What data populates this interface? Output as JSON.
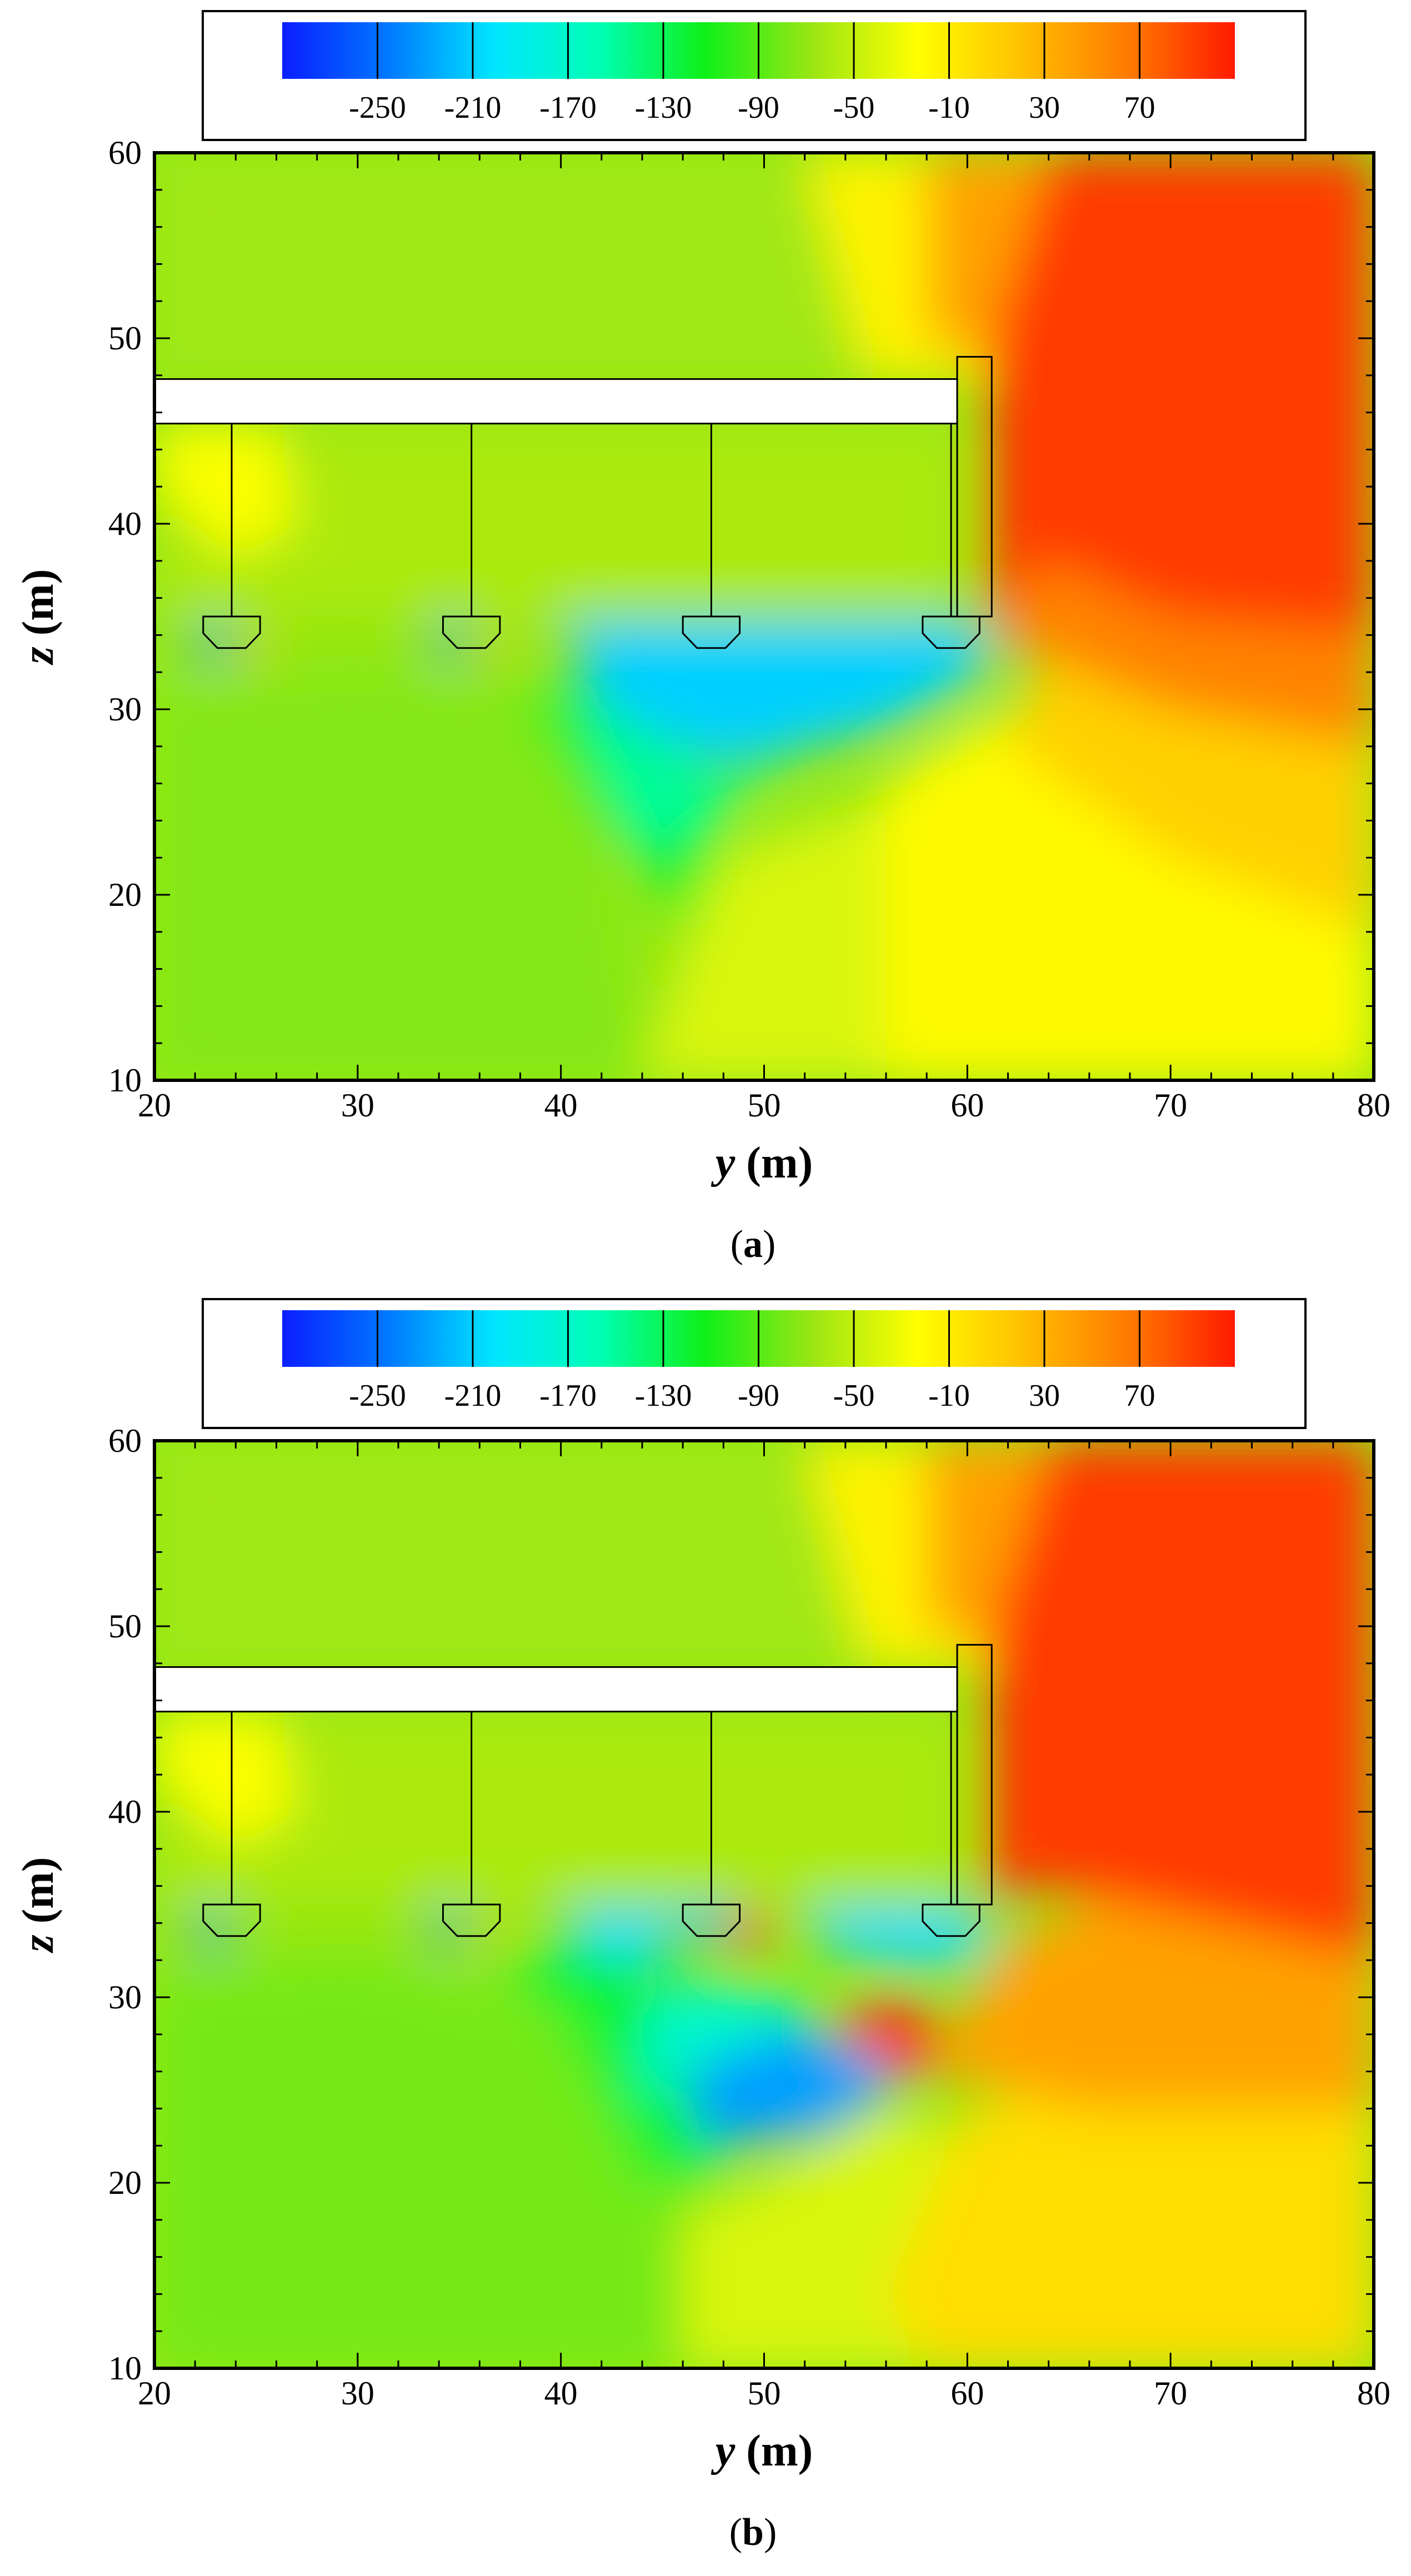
{
  "chart_data": [
    {
      "type": "heatmap",
      "caption_open": "(",
      "caption_letter": "a",
      "caption_close": ")",
      "xlabel_var": "y",
      "xlabel_unit": " (m)",
      "ylabel_var": "z",
      "ylabel_unit": " (m)",
      "xlim": [
        20,
        80
      ],
      "ylim": [
        10,
        60
      ],
      "x_ticks": [
        "20",
        "30",
        "40",
        "50",
        "60",
        "70",
        "80"
      ],
      "y_ticks": [
        "10",
        "20",
        "30",
        "40",
        "50",
        "60"
      ],
      "legend_levels": [
        "-250",
        "-210",
        "-170",
        "-130",
        "-90",
        "-50",
        "-10",
        "30",
        "70"
      ],
      "colorscale": [
        "#0a1eff",
        "#0078ff",
        "#00e6ff",
        "#00ffb4",
        "#10f018",
        "#9ae614",
        "#ffff00",
        "#ffc000",
        "#ff7a00",
        "#ff1a00"
      ],
      "grid": false,
      "deck": {
        "y_start": 20,
        "y_end": 59.5,
        "z_bottom": 45.4,
        "z_top": 47.8
      },
      "pier": {
        "y_left": 59.5,
        "y_right": 61.2,
        "z_bottom": 35,
        "z_top": 49
      },
      "piles": [
        {
          "y": 23.8,
          "z_cap": 35
        },
        {
          "y": 35.6,
          "z_cap": 35
        },
        {
          "y": 47.4,
          "z_cap": 35
        },
        {
          "y": 59.2,
          "z_cap": 35
        }
      ],
      "field_regions": [
        {
          "z": -75,
          "points": [
            [
              20,
              10
            ],
            [
              44,
              10
            ],
            [
              42,
              24
            ],
            [
              38,
              31
            ],
            [
              30,
              32
            ],
            [
              20,
              31
            ]
          ]
        },
        {
          "z": -118,
          "points": [
            [
              38,
              31
            ],
            [
              42,
              24
            ],
            [
              44,
              22
            ],
            [
              46,
              18
            ],
            [
              48,
              24
            ],
            [
              45,
              31
            ]
          ]
        },
        {
          "z": -40,
          "points": [
            [
              44,
              10
            ],
            [
              64,
              10
            ],
            [
              64,
              30
            ],
            [
              58,
              26
            ],
            [
              48,
              22
            ],
            [
              46,
              17
            ]
          ]
        },
        {
          "z": -20,
          "points": [
            [
              56,
              10
            ],
            [
              80,
              10
            ],
            [
              80,
              22
            ],
            [
              68,
              24
            ],
            [
              62,
              30
            ],
            [
              56,
              26
            ]
          ]
        },
        {
          "z": 10,
          "points": [
            [
              62,
              28
            ],
            [
              70,
              22
            ],
            [
              80,
              18
            ],
            [
              80,
              32
            ],
            [
              70,
              35
            ],
            [
              64,
              34
            ]
          ]
        },
        {
          "z": 60,
          "points": [
            [
              61,
              34
            ],
            [
              66,
              45
            ],
            [
              80,
              40
            ],
            [
              80,
              28
            ],
            [
              70,
              30
            ]
          ]
        },
        {
          "z": 95,
          "points": [
            [
              61,
              35
            ],
            [
              61,
              58
            ],
            [
              64,
              60
            ],
            [
              80,
              60
            ],
            [
              80,
              34
            ],
            [
              70,
              35
            ],
            [
              64,
              38
            ]
          ]
        },
        {
          "z": -210,
          "points": [
            [
              40,
              34.8
            ],
            [
              61,
              34.8
            ],
            [
              61,
              32
            ],
            [
              56,
              29
            ],
            [
              48,
              27
            ],
            [
              42,
              30
            ]
          ]
        },
        {
          "z": -150,
          "points": [
            [
              41,
              30
            ],
            [
              48,
              26
            ],
            [
              52,
              28
            ],
            [
              47,
              24
            ],
            [
              44,
              22
            ]
          ]
        },
        {
          "z": -230,
          "points": [
            [
              22,
              34.4
            ],
            [
              24,
              34.4
            ],
            [
              23.5,
              32.6
            ],
            [
              22,
              33
            ]
          ]
        },
        {
          "z": -230,
          "points": [
            [
              33.8,
              34.6
            ],
            [
              35.4,
              34.6
            ],
            [
              35,
              32.6
            ],
            [
              34,
              33
            ]
          ]
        },
        {
          "z": 20,
          "points": [
            [
              24.5,
              34
            ],
            [
              25.6,
              34
            ],
            [
              25.4,
              32.5
            ],
            [
              24.6,
              32.6
            ]
          ]
        },
        {
          "z": 20,
          "points": [
            [
              36.4,
              34
            ],
            [
              37.4,
              34
            ],
            [
              37.2,
              32.6
            ],
            [
              36.5,
              32.6
            ]
          ]
        },
        {
          "z": -60,
          "points": [
            [
              20,
              35
            ],
            [
              59.5,
              35
            ],
            [
              59.5,
              45.4
            ],
            [
              20,
              45.4
            ]
          ]
        },
        {
          "z": -25,
          "points": [
            [
              20,
              42
            ],
            [
              24,
              38
            ],
            [
              27,
              40
            ],
            [
              26,
              45.4
            ],
            [
              20,
              45.4
            ]
          ]
        },
        {
          "z": -65,
          "points": [
            [
              20,
              47.8
            ],
            [
              58,
              47.8
            ],
            [
              58,
              60
            ],
            [
              20,
              60
            ]
          ]
        },
        {
          "z": -15,
          "points": [
            [
              55,
              47.8
            ],
            [
              61,
              47.8
            ],
            [
              60,
              60
            ],
            [
              52,
              60
            ]
          ]
        },
        {
          "z": 40,
          "points": [
            [
              58,
              50
            ],
            [
              61,
              49
            ],
            [
              64,
              60
            ],
            [
              58,
              60
            ]
          ]
        }
      ]
    },
    {
      "type": "heatmap",
      "caption_open": "(",
      "caption_letter": "b",
      "caption_close": ")",
      "xlabel_var": "y",
      "xlabel_unit": " (m)",
      "ylabel_var": "z",
      "ylabel_unit": " (m)",
      "xlim": [
        20,
        80
      ],
      "ylim": [
        10,
        60
      ],
      "x_ticks": [
        "20",
        "30",
        "40",
        "50",
        "60",
        "70",
        "80"
      ],
      "y_ticks": [
        "10",
        "20",
        "30",
        "40",
        "50",
        "60"
      ],
      "legend_levels": [
        "-250",
        "-210",
        "-170",
        "-130",
        "-90",
        "-50",
        "-10",
        "30",
        "70"
      ],
      "colorscale": [
        "#0a1eff",
        "#0078ff",
        "#00e6ff",
        "#00ffb4",
        "#10f018",
        "#9ae614",
        "#ffff00",
        "#ffc000",
        "#ff7a00",
        "#ff1a00"
      ],
      "grid": false,
      "deck": {
        "y_start": 20,
        "y_end": 59.5,
        "z_bottom": 45.4,
        "z_top": 47.8
      },
      "pier": {
        "y_left": 59.5,
        "y_right": 61.2,
        "z_bottom": 35,
        "z_top": 49
      },
      "piles": [
        {
          "y": 23.8,
          "z_cap": 35
        },
        {
          "y": 35.6,
          "z_cap": 35
        },
        {
          "y": 47.4,
          "z_cap": 35
        },
        {
          "y": 59.2,
          "z_cap": 35
        }
      ],
      "field_regions": [
        {
          "z": -80,
          "points": [
            [
              20,
              10
            ],
            [
              48,
              10
            ],
            [
              46,
              20
            ],
            [
              40,
              29
            ],
            [
              30,
              32
            ],
            [
              20,
              31
            ]
          ]
        },
        {
          "z": -120,
          "points": [
            [
              36,
              32
            ],
            [
              40,
              29
            ],
            [
              44,
              20
            ],
            [
              48,
              20
            ],
            [
              47,
              26
            ],
            [
              44,
              33
            ]
          ]
        },
        {
          "z": -40,
          "points": [
            [
              46,
              10
            ],
            [
              62,
              10
            ],
            [
              62,
              22
            ],
            [
              56,
              24
            ],
            [
              50,
              20
            ],
            [
              46,
              18
            ]
          ]
        },
        {
          "z": 0,
          "points": [
            [
              58,
              10
            ],
            [
              80,
              10
            ],
            [
              80,
              24
            ],
            [
              66,
              26
            ],
            [
              60,
              24
            ],
            [
              56,
              14
            ]
          ]
        },
        {
          "z": 40,
          "points": [
            [
              58,
              26
            ],
            [
              66,
              24
            ],
            [
              80,
              24
            ],
            [
              80,
              36
            ],
            [
              68,
              36
            ],
            [
              62,
              33
            ]
          ]
        },
        {
          "z": 95,
          "points": [
            [
              61,
              35
            ],
            [
              61,
              58
            ],
            [
              63,
              60
            ],
            [
              80,
              60
            ],
            [
              80,
              32
            ],
            [
              68,
              35
            ],
            [
              63,
              36
            ]
          ]
        },
        {
          "z": -230,
          "points": [
            [
              46,
              27
            ],
            [
              51,
              29
            ],
            [
              55,
              27
            ],
            [
              57,
              25.5
            ],
            [
              53,
              22.5
            ],
            [
              47,
              22
            ]
          ]
        },
        {
          "z": -170,
          "points": [
            [
              44,
              29
            ],
            [
              46,
              31
            ],
            [
              51,
              30
            ],
            [
              53,
              29
            ],
            [
              46,
              26
            ],
            [
              44,
              24
            ]
          ]
        },
        {
          "z": 100,
          "points": [
            [
              53.2,
              28.6
            ],
            [
              57,
              30.2
            ],
            [
              59,
              27.4
            ],
            [
              57,
              25.6
            ],
            [
              56.4,
              25.8
            ]
          ]
        },
        {
          "z": -205,
          "points": [
            [
              40,
              34.8
            ],
            [
              46,
              34.8
            ],
            [
              45,
              32
            ],
            [
              41,
              32.4
            ]
          ]
        },
        {
          "z": -220,
          "points": [
            [
              46,
              34.8
            ],
            [
              48.8,
              34.8
            ],
            [
              48,
              33
            ],
            [
              46.4,
              32.8
            ]
          ]
        },
        {
          "z": 95,
          "points": [
            [
              48.4,
              34.6
            ],
            [
              50.4,
              34.6
            ],
            [
              50,
              32.6
            ],
            [
              48.6,
              32.6
            ]
          ]
        },
        {
          "z": -205,
          "points": [
            [
              52,
              34.8
            ],
            [
              61,
              34.8
            ],
            [
              60.8,
              32
            ],
            [
              57,
              31.6
            ],
            [
              53,
              32.6
            ]
          ]
        },
        {
          "z": -230,
          "points": [
            [
              21.8,
              34.4
            ],
            [
              23.8,
              34.4
            ],
            [
              23.4,
              32.6
            ],
            [
              22,
              33
            ]
          ]
        },
        {
          "z": -230,
          "points": [
            [
              33.6,
              34.6
            ],
            [
              35.2,
              34.6
            ],
            [
              34.8,
              32.6
            ],
            [
              33.8,
              33
            ]
          ]
        },
        {
          "z": 20,
          "points": [
            [
              36.4,
              34
            ],
            [
              37.4,
              34
            ],
            [
              37.2,
              32.6
            ],
            [
              36.5,
              32.6
            ]
          ]
        },
        {
          "z": -60,
          "points": [
            [
              20,
              35
            ],
            [
              59.5,
              35
            ],
            [
              59.5,
              45.4
            ],
            [
              20,
              45.4
            ]
          ]
        },
        {
          "z": -25,
          "points": [
            [
              20,
              42
            ],
            [
              24,
              38
            ],
            [
              27,
              40
            ],
            [
              26,
              45.4
            ],
            [
              20,
              45.4
            ]
          ]
        },
        {
          "z": -65,
          "points": [
            [
              20,
              47.8
            ],
            [
              58,
              47.8
            ],
            [
              58,
              60
            ],
            [
              20,
              60
            ]
          ]
        },
        {
          "z": -15,
          "points": [
            [
              55,
              47.8
            ],
            [
              61,
              47.8
            ],
            [
              60,
              60
            ],
            [
              52,
              60
            ]
          ]
        },
        {
          "z": 40,
          "points": [
            [
              58,
              50
            ],
            [
              61,
              49
            ],
            [
              64,
              60
            ],
            [
              58,
              60
            ]
          ]
        }
      ]
    }
  ]
}
